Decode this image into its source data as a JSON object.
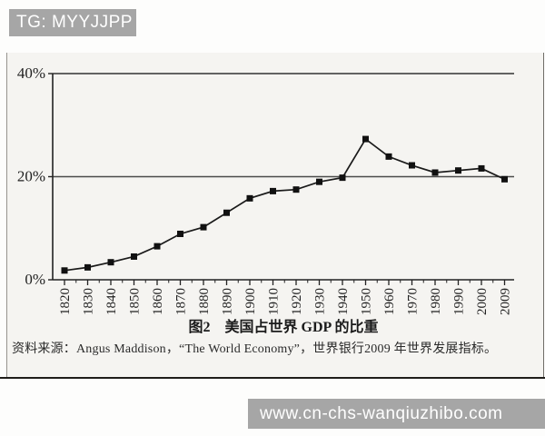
{
  "watermark_top": {
    "text": "TG: MYYJJPP"
  },
  "watermark_bottom": {
    "text": "www.cn-chs-wanqiuzhibo.com"
  },
  "colors": {
    "banner_bg": "#a6a6a6",
    "banner_text": "#ffffff",
    "line": "#1a1a1a",
    "marker": "#111111",
    "axis": "#222222",
    "gridline": "#4a4a4a",
    "scan_bg": "#f5f4f1"
  },
  "chart_data": {
    "type": "line",
    "title": "图2　美国占世界 GDP 的比重",
    "source": "资料来源：Angus Maddison，“The World Economy”，世界银行2009 年世界发展指标。",
    "categories": [
      "1820",
      "1830",
      "1840",
      "1850",
      "1860",
      "1870",
      "1880",
      "1890",
      "1900",
      "1910",
      "1920",
      "1930",
      "1940",
      "1950",
      "1960",
      "1970",
      "1980",
      "1990",
      "2000",
      "2009"
    ],
    "values": [
      1.8,
      2.4,
      3.4,
      4.5,
      6.5,
      8.9,
      10.2,
      13.0,
      15.8,
      17.2,
      17.5,
      19.0,
      19.8,
      27.3,
      23.9,
      22.2,
      20.8,
      21.2,
      21.6,
      19.5
    ],
    "ylim": [
      0,
      40
    ],
    "yticks": [
      {
        "label": "0%",
        "value": 0
      },
      {
        "label": "20%",
        "value": 20
      },
      {
        "label": "40%",
        "value": 40
      }
    ],
    "marker": "square",
    "grid": "horizontal line at 20%, top frame at 40%",
    "legend": "none",
    "x_label_rotation": -90
  }
}
